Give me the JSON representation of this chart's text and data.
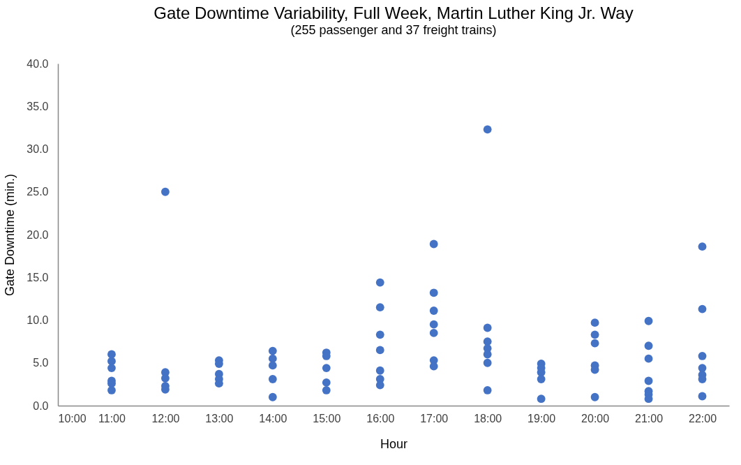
{
  "chart_data": {
    "type": "scatter",
    "title": "Gate Downtime Variability, Full Week, Martin Luther King Jr. Way",
    "subtitle": "(255 passenger and 37 freight trains)",
    "xlabel": "Hour",
    "ylabel": "Gate Downtime (min.)",
    "series": [
      {
        "color": "#4472c4",
        "x": [
          11,
          11,
          11,
          11,
          11,
          11,
          12,
          12,
          12,
          12,
          12,
          13,
          13,
          13,
          13,
          13,
          14,
          14,
          14,
          14,
          14,
          15,
          15,
          15,
          15,
          15,
          16,
          16,
          16,
          16,
          16,
          16,
          16,
          17,
          17,
          17,
          17,
          17,
          17,
          17,
          18,
          18,
          18,
          18,
          18,
          18,
          18,
          19,
          19,
          19,
          19,
          19,
          20,
          20,
          20,
          20,
          20,
          20,
          21,
          21,
          21,
          21,
          21,
          21,
          21,
          22,
          22,
          22,
          22,
          22,
          22,
          22
        ],
        "values": [
          6.0,
          5.2,
          4.4,
          2.9,
          2.6,
          1.8,
          25.0,
          3.9,
          3.2,
          2.3,
          1.9,
          5.3,
          4.9,
          3.7,
          3.1,
          2.6,
          6.4,
          5.5,
          4.7,
          3.1,
          1.0,
          6.2,
          5.8,
          4.4,
          2.7,
          1.8,
          14.4,
          11.5,
          8.3,
          6.5,
          4.1,
          3.1,
          2.4,
          18.9,
          13.2,
          11.1,
          9.5,
          8.5,
          5.3,
          4.6,
          32.3,
          9.1,
          7.5,
          6.7,
          6.0,
          5.0,
          1.8,
          4.9,
          4.4,
          3.9,
          3.1,
          0.8,
          9.7,
          8.3,
          7.3,
          4.7,
          4.2,
          1.0,
          9.9,
          7.0,
          5.5,
          2.9,
          1.7,
          1.3,
          0.8,
          18.6,
          11.3,
          5.8,
          4.4,
          3.6,
          3.1,
          1.1
        ]
      }
    ],
    "xlim": [
      10,
      22.5
    ],
    "xticks": [
      {
        "value": 10,
        "label": "10:00"
      },
      {
        "value": 11,
        "label": "11:00"
      },
      {
        "value": 12,
        "label": "12:00"
      },
      {
        "value": 13,
        "label": "13:00"
      },
      {
        "value": 14,
        "label": "14:00"
      },
      {
        "value": 15,
        "label": "15:00"
      },
      {
        "value": 16,
        "label": "16:00"
      },
      {
        "value": 17,
        "label": "17:00"
      },
      {
        "value": 18,
        "label": "18:00"
      },
      {
        "value": 19,
        "label": "19:00"
      },
      {
        "value": 20,
        "label": "20:00"
      },
      {
        "value": 21,
        "label": "21:00"
      },
      {
        "value": 22,
        "label": "22:00"
      }
    ],
    "ylim": [
      0,
      40
    ],
    "yticks": [
      {
        "value": 0,
        "label": "0.0"
      },
      {
        "value": 5,
        "label": "5.0"
      },
      {
        "value": 10,
        "label": "10.0"
      },
      {
        "value": 15,
        "label": "15.0"
      },
      {
        "value": 20,
        "label": "20.0"
      },
      {
        "value": 25,
        "label": "25.0"
      },
      {
        "value": 30,
        "label": "30.0"
      },
      {
        "value": 35,
        "label": "35.0"
      },
      {
        "value": 40,
        "label": "40.0"
      }
    ],
    "grid": false,
    "legend": false,
    "marker": "circle"
  }
}
